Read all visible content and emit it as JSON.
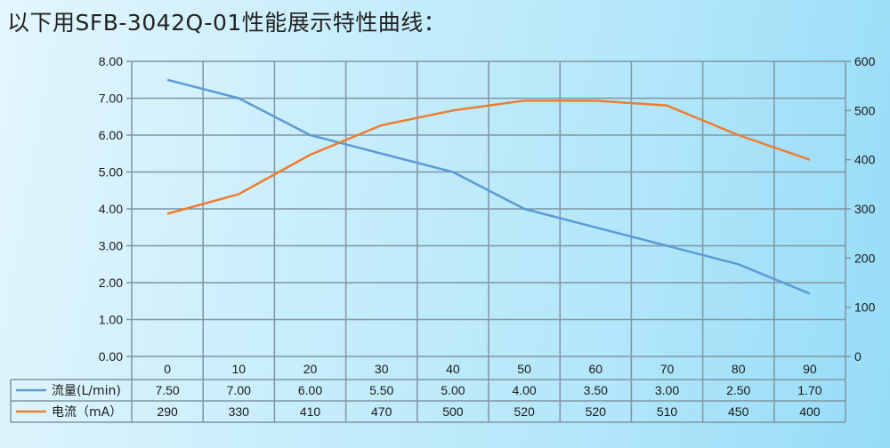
{
  "title": "以下用SFB-3042Q-01性能展示特性曲线：",
  "chart_data": {
    "type": "line",
    "title": "以下用SFB-3042Q-01性能展示特性曲线：",
    "xlabel": "",
    "ylabel": "",
    "categories": [
      "0",
      "10",
      "20",
      "30",
      "40",
      "50",
      "60",
      "70",
      "80",
      "90"
    ],
    "series": [
      {
        "name": "流量(L/min)",
        "axis": "left",
        "color": "#5b9bd5",
        "values": [
          7.5,
          7.0,
          6.0,
          5.5,
          5.0,
          4.0,
          3.5,
          3.0,
          2.5,
          1.7
        ],
        "labels": [
          "7.50",
          "7.00",
          "6.00",
          "5.50",
          "5.00",
          "4.00",
          "3.50",
          "3.00",
          "2.50",
          "1.70"
        ]
      },
      {
        "name": "电流（mA）",
        "axis": "right",
        "color": "#ed7d31",
        "values": [
          290,
          330,
          410,
          470,
          500,
          520,
          520,
          510,
          450,
          400
        ],
        "labels": [
          "290",
          "330",
          "410",
          "470",
          "500",
          "520",
          "520",
          "510",
          "450",
          "400"
        ]
      }
    ],
    "ylim_left": [
      0,
      8
    ],
    "ylim_right": [
      0,
      600
    ],
    "yticks_left": [
      "0.00",
      "1.00",
      "2.00",
      "3.00",
      "4.00",
      "5.00",
      "6.00",
      "7.00",
      "8.00"
    ],
    "yticks_right": [
      "0",
      "100",
      "200",
      "300",
      "400",
      "500",
      "600"
    ],
    "grid": true,
    "legend_position": "data-table-bottom"
  }
}
